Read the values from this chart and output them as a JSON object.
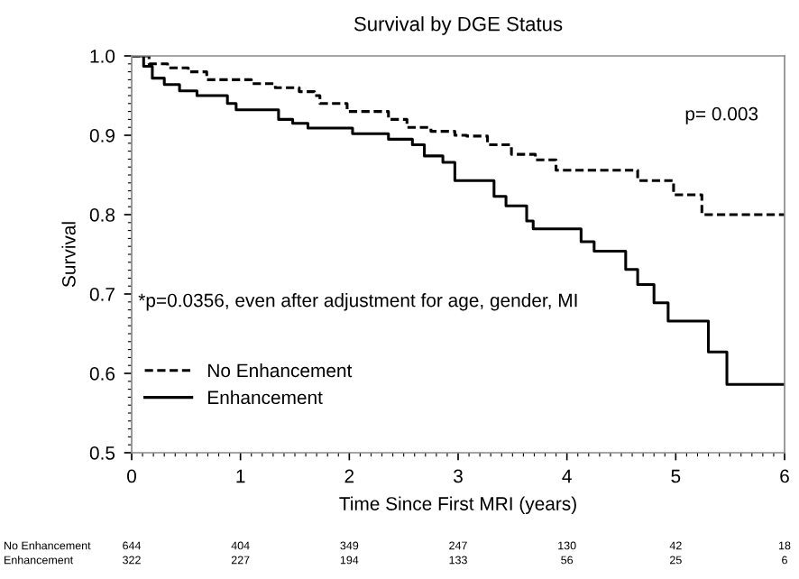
{
  "chart_data": {
    "type": "step",
    "title": "Survival by DGE Status",
    "xlabel": "Time Since First MRI (years)",
    "ylabel": "Survival",
    "xlim": [
      0,
      6
    ],
    "xticks": [
      0,
      1,
      2,
      3,
      4,
      5,
      6
    ],
    "ylim": [
      0.5,
      1.0
    ],
    "yticks": [
      0.5,
      0.6,
      0.7,
      0.8,
      0.9,
      {
        "value": 1.0,
        "label": "1.0"
      }
    ],
    "grid": false,
    "legend": "lower left",
    "series": [
      {
        "name": "No Enhancement",
        "color": "#000000",
        "line_style": "dashed",
        "x": [
          0,
          0.16,
          0.33,
          0.52,
          0.69,
          1.1,
          1.32,
          1.54,
          1.68,
          1.73,
          1.98,
          2.36,
          2.53,
          2.75,
          2.97,
          3.08,
          3.27,
          3.49,
          3.71,
          3.9,
          4.65,
          4.98,
          5.24,
          6
        ],
        "values": [
          1.0,
          0.99,
          0.985,
          0.98,
          0.97,
          0.965,
          0.96,
          0.955,
          0.95,
          0.94,
          0.93,
          0.92,
          0.91,
          0.905,
          0.9,
          0.899,
          0.888,
          0.876,
          0.869,
          0.856,
          0.843,
          0.825,
          0.8,
          0.8
        ]
      },
      {
        "name": "Enhancement",
        "color": "#000000",
        "line_style": "solid",
        "x": [
          0,
          0.11,
          0.19,
          0.3,
          0.44,
          0.6,
          0.88,
          0.96,
          1.35,
          1.48,
          1.62,
          2.03,
          2.36,
          2.58,
          2.69,
          2.86,
          2.97,
          3.33,
          3.44,
          3.63,
          3.69,
          4.13,
          4.25,
          4.54,
          4.65,
          4.8,
          4.93,
          5.3,
          5.47,
          6
        ],
        "values": [
          1.0,
          0.987,
          0.972,
          0.964,
          0.956,
          0.95,
          0.94,
          0.932,
          0.92,
          0.915,
          0.909,
          0.902,
          0.895,
          0.888,
          0.874,
          0.866,
          0.843,
          0.823,
          0.811,
          0.792,
          0.782,
          0.766,
          0.754,
          0.731,
          0.712,
          0.689,
          0.666,
          0.627,
          0.586,
          0.586
        ]
      }
    ],
    "annotations": [
      "p= 0.003",
      "*p=0.0356, even after adjustment for age, gender, MI",
      "No Enhancement",
      "644",
      "404",
      "349",
      "247",
      "130",
      "42",
      "18",
      "Enhancement",
      "322",
      "227",
      "194",
      "133",
      "56",
      "25",
      "6"
    ]
  }
}
